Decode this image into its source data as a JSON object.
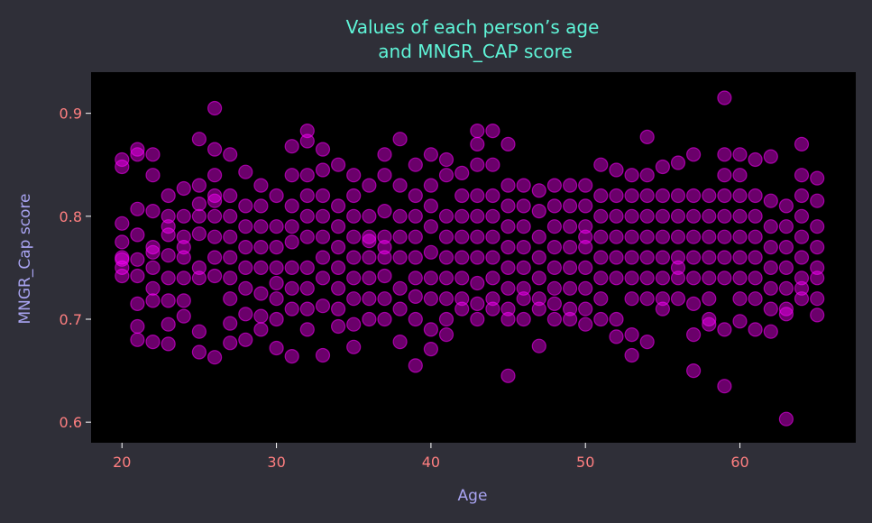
{
  "chart_data": {
    "type": "scatter",
    "title_line1": "Values of each person’s age",
    "title_line2": "and MNGR_CAP score",
    "xlabel": "Age",
    "ylabel": "MNGR_Cap score",
    "xlim": [
      18,
      67.5
    ],
    "ylim": [
      0.58,
      0.94
    ],
    "xticks": [
      20,
      30,
      40,
      50,
      60
    ],
    "yticks": [
      0.6,
      0.7,
      0.8,
      0.9
    ],
    "xtick_labels": [
      "20",
      "30",
      "40",
      "50",
      "60"
    ],
    "ytick_labels": [
      "0.6",
      "0.7",
      "0.8",
      "0.9"
    ],
    "grid": false,
    "colors": {
      "background": "#2f2f38",
      "plot_background": "#000000",
      "marker": "#ff00ff",
      "title": "#5ff5d8",
      "axis_label": "#a9a4f2",
      "tick_label": "#ff7f80"
    },
    "series": [
      {
        "x": [
          20,
          20,
          20,
          20,
          20,
          20,
          20,
          20,
          21,
          21,
          21,
          21,
          21,
          21,
          21,
          21,
          21,
          22,
          22,
          22,
          22,
          22,
          22,
          22,
          22,
          22,
          23,
          23,
          23,
          23,
          23,
          23,
          23,
          23,
          23,
          24,
          24,
          24,
          24,
          24,
          24,
          24,
          24,
          25,
          25,
          25,
          25,
          25,
          25,
          25,
          25,
          25,
          26,
          26,
          26,
          26,
          26,
          26,
          26,
          26,
          26,
          26,
          27,
          27,
          27,
          27,
          27,
          27,
          27,
          27,
          27,
          28,
          28,
          28,
          28,
          28,
          28,
          28,
          28,
          29,
          29,
          29,
          29,
          29,
          29,
          29,
          29,
          30,
          30,
          30,
          30,
          30,
          30,
          30,
          30,
          31,
          31,
          31,
          31,
          31,
          31,
          31,
          31,
          31,
          32,
          32,
          32,
          32,
          32,
          32,
          32,
          32,
          32,
          32,
          33,
          33,
          33,
          33,
          33,
          33,
          33,
          33,
          33,
          34,
          34,
          34,
          34,
          34,
          34,
          34,
          34,
          35,
          35,
          35,
          35,
          35,
          35,
          35,
          35,
          35,
          36,
          36,
          36,
          36,
          36,
          36,
          36,
          36,
          37,
          37,
          37,
          37,
          37,
          37,
          37,
          37,
          37,
          38,
          38,
          38,
          38,
          38,
          38,
          38,
          38,
          39,
          39,
          39,
          39,
          39,
          39,
          39,
          39,
          39,
          40,
          40,
          40,
          40,
          40,
          40,
          40,
          40,
          40,
          41,
          41,
          41,
          41,
          41,
          41,
          41,
          41,
          41,
          42,
          42,
          42,
          42,
          42,
          42,
          42,
          42,
          43,
          43,
          43,
          43,
          43,
          43,
          43,
          43,
          43,
          43,
          44,
          44,
          44,
          44,
          44,
          44,
          44,
          44,
          44,
          45,
          45,
          45,
          45,
          45,
          45,
          45,
          45,
          45,
          45,
          46,
          46,
          46,
          46,
          46,
          46,
          46,
          46,
          47,
          47,
          47,
          47,
          47,
          47,
          47,
          47,
          48,
          48,
          48,
          48,
          48,
          48,
          48,
          48,
          49,
          49,
          49,
          49,
          49,
          49,
          49,
          49,
          50,
          50,
          50,
          50,
          50,
          50,
          50,
          50,
          50,
          51,
          51,
          51,
          51,
          51,
          51,
          51,
          51,
          52,
          52,
          52,
          52,
          52,
          52,
          52,
          52,
          53,
          53,
          53,
          53,
          53,
          53,
          53,
          53,
          53,
          54,
          54,
          54,
          54,
          54,
          54,
          54,
          54,
          54,
          55,
          55,
          55,
          55,
          55,
          55,
          55,
          55,
          56,
          56,
          56,
          56,
          56,
          56,
          56,
          56,
          57,
          57,
          57,
          57,
          57,
          57,
          57,
          57,
          57,
          58,
          58,
          58,
          58,
          58,
          58,
          58,
          58,
          59,
          59,
          59,
          59,
          59,
          59,
          59,
          59,
          59,
          59,
          60,
          60,
          60,
          60,
          60,
          60,
          60,
          60,
          60,
          61,
          61,
          61,
          61,
          61,
          61,
          61,
          61,
          62,
          62,
          62,
          62,
          62,
          62,
          62,
          62,
          63,
          63,
          63,
          63,
          63,
          63,
          63,
          63,
          64,
          64,
          64,
          64,
          64,
          64,
          64,
          64,
          64,
          65,
          65,
          65,
          65,
          65,
          65,
          65,
          65
        ],
        "y": [
          0.855,
          0.848,
          0.793,
          0.775,
          0.758,
          0.75,
          0.742,
          0.76,
          0.865,
          0.807,
          0.782,
          0.758,
          0.742,
          0.715,
          0.693,
          0.68,
          0.86,
          0.86,
          0.84,
          0.805,
          0.77,
          0.75,
          0.73,
          0.718,
          0.678,
          0.765,
          0.82,
          0.8,
          0.782,
          0.762,
          0.74,
          0.718,
          0.695,
          0.676,
          0.79,
          0.827,
          0.8,
          0.78,
          0.76,
          0.74,
          0.718,
          0.703,
          0.77,
          0.875,
          0.83,
          0.8,
          0.783,
          0.75,
          0.74,
          0.688,
          0.668,
          0.812,
          0.905,
          0.865,
          0.84,
          0.82,
          0.8,
          0.78,
          0.76,
          0.742,
          0.663,
          0.815,
          0.86,
          0.82,
          0.8,
          0.78,
          0.76,
          0.74,
          0.72,
          0.696,
          0.677,
          0.843,
          0.81,
          0.79,
          0.77,
          0.75,
          0.73,
          0.705,
          0.68,
          0.83,
          0.81,
          0.79,
          0.77,
          0.75,
          0.725,
          0.703,
          0.69,
          0.82,
          0.79,
          0.77,
          0.75,
          0.735,
          0.72,
          0.7,
          0.672,
          0.868,
          0.84,
          0.81,
          0.79,
          0.775,
          0.75,
          0.73,
          0.71,
          0.664,
          0.883,
          0.873,
          0.84,
          0.82,
          0.8,
          0.78,
          0.75,
          0.73,
          0.71,
          0.69,
          0.865,
          0.845,
          0.82,
          0.8,
          0.78,
          0.76,
          0.74,
          0.713,
          0.665,
          0.85,
          0.81,
          0.79,
          0.77,
          0.75,
          0.73,
          0.71,
          0.693,
          0.84,
          0.82,
          0.8,
          0.78,
          0.76,
          0.74,
          0.72,
          0.695,
          0.673,
          0.83,
          0.8,
          0.78,
          0.76,
          0.74,
          0.72,
          0.7,
          0.776,
          0.86,
          0.84,
          0.805,
          0.78,
          0.76,
          0.742,
          0.72,
          0.7,
          0.77,
          0.875,
          0.83,
          0.8,
          0.78,
          0.76,
          0.73,
          0.71,
          0.678,
          0.85,
          0.82,
          0.8,
          0.78,
          0.76,
          0.74,
          0.722,
          0.7,
          0.655,
          0.86,
          0.83,
          0.81,
          0.79,
          0.765,
          0.74,
          0.72,
          0.69,
          0.671,
          0.855,
          0.84,
          0.8,
          0.78,
          0.76,
          0.74,
          0.72,
          0.7,
          0.685,
          0.842,
          0.82,
          0.8,
          0.78,
          0.76,
          0.74,
          0.72,
          0.71,
          0.883,
          0.87,
          0.85,
          0.82,
          0.8,
          0.78,
          0.76,
          0.735,
          0.715,
          0.7,
          0.883,
          0.85,
          0.82,
          0.8,
          0.78,
          0.76,
          0.74,
          0.72,
          0.71,
          0.87,
          0.83,
          0.81,
          0.79,
          0.77,
          0.75,
          0.73,
          0.71,
          0.7,
          0.645,
          0.83,
          0.81,
          0.79,
          0.77,
          0.75,
          0.73,
          0.72,
          0.7,
          0.825,
          0.805,
          0.78,
          0.76,
          0.74,
          0.72,
          0.71,
          0.674,
          0.83,
          0.81,
          0.79,
          0.77,
          0.75,
          0.73,
          0.715,
          0.7,
          0.83,
          0.81,
          0.79,
          0.77,
          0.75,
          0.73,
          0.71,
          0.7,
          0.83,
          0.81,
          0.79,
          0.77,
          0.75,
          0.73,
          0.71,
          0.695,
          0.78,
          0.85,
          0.82,
          0.8,
          0.78,
          0.76,
          0.74,
          0.72,
          0.7,
          0.845,
          0.82,
          0.8,
          0.78,
          0.76,
          0.74,
          0.7,
          0.683,
          0.84,
          0.82,
          0.8,
          0.78,
          0.76,
          0.74,
          0.72,
          0.685,
          0.665,
          0.877,
          0.84,
          0.82,
          0.8,
          0.78,
          0.76,
          0.74,
          0.72,
          0.678,
          0.848,
          0.82,
          0.8,
          0.78,
          0.76,
          0.74,
          0.72,
          0.71,
          0.852,
          0.82,
          0.8,
          0.78,
          0.76,
          0.74,
          0.72,
          0.75,
          0.86,
          0.82,
          0.8,
          0.78,
          0.76,
          0.74,
          0.715,
          0.685,
          0.65,
          0.82,
          0.8,
          0.78,
          0.76,
          0.74,
          0.72,
          0.7,
          0.695,
          0.915,
          0.86,
          0.84,
          0.82,
          0.8,
          0.78,
          0.76,
          0.74,
          0.69,
          0.635,
          0.86,
          0.84,
          0.82,
          0.8,
          0.78,
          0.76,
          0.74,
          0.72,
          0.698,
          0.855,
          0.82,
          0.8,
          0.78,
          0.76,
          0.74,
          0.72,
          0.69,
          0.858,
          0.815,
          0.79,
          0.77,
          0.75,
          0.73,
          0.71,
          0.688,
          0.81,
          0.79,
          0.77,
          0.75,
          0.73,
          0.71,
          0.705,
          0.603,
          0.87,
          0.84,
          0.82,
          0.8,
          0.78,
          0.76,
          0.74,
          0.73,
          0.72,
          0.837,
          0.815,
          0.79,
          0.77,
          0.75,
          0.74,
          0.72,
          0.704
        ]
      }
    ]
  }
}
